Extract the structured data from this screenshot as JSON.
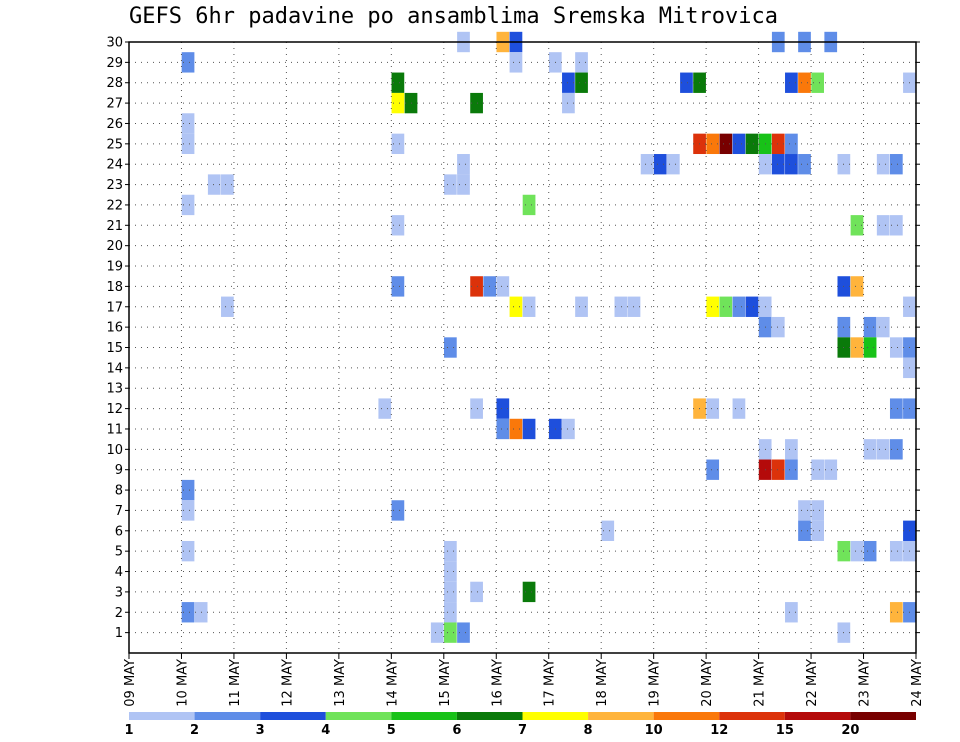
{
  "chart_data": {
    "type": "heatmap",
    "title": "GEFS 6hr padavine po ansamblima Sremska Mitrovica",
    "xlabel": "",
    "ylabel": "",
    "x_ticks": [
      "09 MAY",
      "10 MAY",
      "11 MAY",
      "12 MAY",
      "13 MAY",
      "14 MAY",
      "15 MAY",
      "16 MAY",
      "17 MAY",
      "18 MAY",
      "19 MAY",
      "20 MAY",
      "21 MAY",
      "22 MAY",
      "23 MAY",
      "24 MAY"
    ],
    "y_ticks": [
      1,
      2,
      3,
      4,
      5,
      6,
      7,
      8,
      9,
      10,
      11,
      12,
      13,
      14,
      15,
      16,
      17,
      18,
      19,
      20,
      21,
      22,
      23,
      24,
      25,
      26,
      27,
      28,
      29,
      30
    ],
    "x_range_days": [
      0,
      15
    ],
    "y_range": [
      0,
      30
    ],
    "step_days": 0.25,
    "grid": true,
    "legend": {
      "placement": "bottom",
      "labels": [
        "1",
        "2",
        "3",
        "4",
        "5",
        "6",
        "7",
        "8",
        "10",
        "12",
        "15",
        "20"
      ],
      "colors": [
        "#b0c4f4",
        "#5f8de8",
        "#1e4fdc",
        "#70e35a",
        "#18c218",
        "#0a7a0a",
        "#ffff00",
        "#ffb43c",
        "#fa780a",
        "#dc320a",
        "#b40a0a",
        "#780000"
      ]
    },
    "cells": [
      [
        6.25,
        30,
        1
      ],
      [
        7.0,
        30,
        8
      ],
      [
        7.25,
        30,
        3
      ],
      [
        12.25,
        30,
        2
      ],
      [
        12.75,
        30,
        2
      ],
      [
        13.25,
        30,
        2
      ],
      [
        1.0,
        29,
        2
      ],
      [
        7.25,
        29,
        1
      ],
      [
        8.0,
        29,
        1
      ],
      [
        8.5,
        29,
        1
      ],
      [
        5.0,
        28,
        6
      ],
      [
        8.25,
        28,
        3
      ],
      [
        8.5,
        28,
        6
      ],
      [
        10.5,
        28,
        3
      ],
      [
        10.75,
        28,
        6
      ],
      [
        12.5,
        28,
        3
      ],
      [
        12.75,
        28,
        9
      ],
      [
        13.0,
        28,
        4
      ],
      [
        14.75,
        28,
        1
      ],
      [
        5.0,
        27,
        7
      ],
      [
        5.25,
        27,
        6
      ],
      [
        6.5,
        27,
        6
      ],
      [
        8.25,
        27,
        1
      ],
      [
        1.0,
        26,
        1
      ],
      [
        1.0,
        25,
        1
      ],
      [
        5.0,
        25,
        1
      ],
      [
        10.75,
        25,
        10
      ],
      [
        11.0,
        25,
        9
      ],
      [
        11.25,
        25,
        12
      ],
      [
        11.5,
        25,
        3
      ],
      [
        11.75,
        25,
        6
      ],
      [
        12.0,
        25,
        5
      ],
      [
        12.25,
        25,
        10
      ],
      [
        12.5,
        25,
        2
      ],
      [
        6.25,
        24,
        1
      ],
      [
        9.75,
        24,
        1
      ],
      [
        10.0,
        24,
        3
      ],
      [
        10.25,
        24,
        1
      ],
      [
        12.0,
        24,
        1
      ],
      [
        12.25,
        24,
        3
      ],
      [
        12.5,
        24,
        3
      ],
      [
        12.75,
        24,
        2
      ],
      [
        13.5,
        24,
        1
      ],
      [
        14.25,
        24,
        1
      ],
      [
        14.5,
        24,
        2
      ],
      [
        1.5,
        23,
        1
      ],
      [
        1.75,
        23,
        1
      ],
      [
        6.0,
        23,
        1
      ],
      [
        6.25,
        23,
        1
      ],
      [
        1.0,
        22,
        1
      ],
      [
        7.5,
        22,
        4
      ],
      [
        5.0,
        21,
        1
      ],
      [
        13.75,
        21,
        4
      ],
      [
        14.25,
        21,
        1
      ],
      [
        14.5,
        21,
        1
      ],
      [
        5.0,
        18,
        2
      ],
      [
        6.5,
        18,
        10
      ],
      [
        6.75,
        18,
        2
      ],
      [
        7.0,
        18,
        1
      ],
      [
        13.5,
        18,
        3
      ],
      [
        13.75,
        18,
        8
      ],
      [
        1.75,
        17,
        1
      ],
      [
        7.25,
        17,
        7
      ],
      [
        7.5,
        17,
        1
      ],
      [
        8.5,
        17,
        1
      ],
      [
        9.25,
        17,
        1
      ],
      [
        9.5,
        17,
        1
      ],
      [
        11.0,
        17,
        7
      ],
      [
        11.25,
        17,
        4
      ],
      [
        11.5,
        17,
        2
      ],
      [
        11.75,
        17,
        3
      ],
      [
        12.0,
        17,
        1
      ],
      [
        14.75,
        17,
        1
      ],
      [
        12.0,
        16,
        2
      ],
      [
        12.25,
        16,
        1
      ],
      [
        13.5,
        16,
        2
      ],
      [
        14.0,
        16,
        2
      ],
      [
        14.25,
        16,
        1
      ],
      [
        6.0,
        15,
        2
      ],
      [
        13.5,
        15,
        6
      ],
      [
        13.75,
        15,
        8
      ],
      [
        14.0,
        15,
        5
      ],
      [
        14.5,
        15,
        1
      ],
      [
        14.75,
        15,
        2
      ],
      [
        14.75,
        14,
        1
      ],
      [
        4.75,
        12,
        1
      ],
      [
        6.5,
        12,
        1
      ],
      [
        7.0,
        12,
        3
      ],
      [
        10.75,
        12,
        8
      ],
      [
        11.0,
        12,
        1
      ],
      [
        11.5,
        12,
        1
      ],
      [
        14.5,
        12,
        2
      ],
      [
        14.75,
        12,
        2
      ],
      [
        7.0,
        11,
        2
      ],
      [
        7.25,
        11,
        9
      ],
      [
        7.5,
        11,
        3
      ],
      [
        8.0,
        11,
        3
      ],
      [
        8.25,
        11,
        1
      ],
      [
        12.0,
        10,
        1
      ],
      [
        12.5,
        10,
        1
      ],
      [
        14.0,
        10,
        1
      ],
      [
        14.25,
        10,
        1
      ],
      [
        14.5,
        10,
        2
      ],
      [
        11.0,
        9,
        2
      ],
      [
        12.0,
        9,
        11
      ],
      [
        12.25,
        9,
        10
      ],
      [
        12.5,
        9,
        2
      ],
      [
        13.0,
        9,
        1
      ],
      [
        13.25,
        9,
        1
      ],
      [
        1.0,
        8,
        2
      ],
      [
        1.0,
        7,
        1
      ],
      [
        5.0,
        7,
        2
      ],
      [
        12.75,
        7,
        1
      ],
      [
        13.0,
        7,
        1
      ],
      [
        9.0,
        6,
        1
      ],
      [
        12.75,
        6,
        2
      ],
      [
        13.0,
        6,
        1
      ],
      [
        14.75,
        6,
        3
      ],
      [
        1.0,
        5,
        1
      ],
      [
        6.0,
        5,
        1
      ],
      [
        13.5,
        5,
        4
      ],
      [
        13.75,
        5,
        1
      ],
      [
        14.0,
        5,
        2
      ],
      [
        14.5,
        5,
        1
      ],
      [
        14.75,
        5,
        1
      ],
      [
        6.0,
        4,
        1
      ],
      [
        6.0,
        3,
        1
      ],
      [
        6.5,
        3,
        1
      ],
      [
        7.5,
        3,
        6
      ],
      [
        1.0,
        2,
        2
      ],
      [
        1.25,
        2,
        1
      ],
      [
        6.0,
        2,
        1
      ],
      [
        12.5,
        2,
        1
      ],
      [
        14.5,
        2,
        8
      ],
      [
        14.75,
        2,
        2
      ],
      [
        5.75,
        1,
        1
      ],
      [
        6.0,
        1,
        4
      ],
      [
        6.25,
        1,
        2
      ],
      [
        13.5,
        1,
        1
      ]
    ]
  }
}
